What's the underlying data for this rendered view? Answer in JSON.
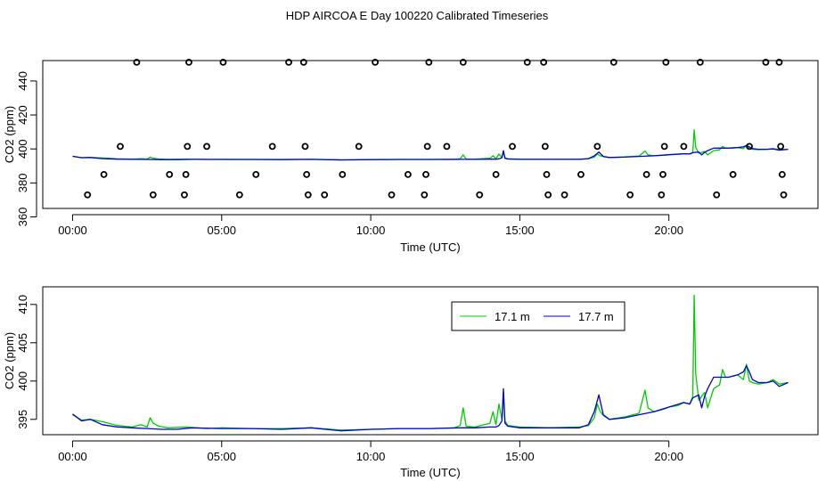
{
  "figure": {
    "title": "HDP AIRCOA E  Day 100220  Calibrated Timeseries"
  },
  "chart_data": [
    {
      "type": "scatter+line",
      "xlabel": "Time (UTC)",
      "ylabel": "CO2 (ppm)",
      "xlim": [
        -1.0,
        25.0
      ],
      "ylim": [
        365,
        452
      ],
      "x_ticks": [
        0,
        5,
        10,
        15,
        20
      ],
      "x_tick_labels": [
        "00:00",
        "05:00",
        "10:00",
        "15:00",
        "20:00"
      ],
      "y_ticks": [
        360,
        380,
        400,
        420,
        440
      ],
      "y_tick_labels": [
        "360",
        "380",
        "400",
        "420",
        "440"
      ],
      "grid": false,
      "calibration_points": [
        {
          "x": 0.5,
          "y": 373
        },
        {
          "x": 1.05,
          "y": 385
        },
        {
          "x": 1.6,
          "y": 401.5
        },
        {
          "x": 2.15,
          "y": 451
        },
        {
          "x": 2.7,
          "y": 373
        },
        {
          "x": 3.25,
          "y": 385
        },
        {
          "x": 3.75,
          "y": 373
        },
        {
          "x": 3.8,
          "y": 385
        },
        {
          "x": 3.85,
          "y": 401.5
        },
        {
          "x": 3.9,
          "y": 451
        },
        {
          "x": 4.5,
          "y": 401.5
        },
        {
          "x": 5.05,
          "y": 451
        },
        {
          "x": 5.6,
          "y": 373
        },
        {
          "x": 6.15,
          "y": 385
        },
        {
          "x": 6.7,
          "y": 401.5
        },
        {
          "x": 7.25,
          "y": 451
        },
        {
          "x": 7.75,
          "y": 451
        },
        {
          "x": 7.8,
          "y": 401.5
        },
        {
          "x": 7.85,
          "y": 385
        },
        {
          "x": 7.9,
          "y": 373
        },
        {
          "x": 8.45,
          "y": 373
        },
        {
          "x": 9.05,
          "y": 385
        },
        {
          "x": 9.6,
          "y": 401.5
        },
        {
          "x": 10.15,
          "y": 451
        },
        {
          "x": 10.7,
          "y": 373
        },
        {
          "x": 11.25,
          "y": 385
        },
        {
          "x": 11.8,
          "y": 373
        },
        {
          "x": 11.85,
          "y": 385
        },
        {
          "x": 11.9,
          "y": 401.5
        },
        {
          "x": 11.95,
          "y": 451
        },
        {
          "x": 12.55,
          "y": 401.5
        },
        {
          "x": 13.1,
          "y": 451
        },
        {
          "x": 13.65,
          "y": 373
        },
        {
          "x": 14.2,
          "y": 385
        },
        {
          "x": 14.75,
          "y": 401.5
        },
        {
          "x": 15.25,
          "y": 451
        },
        {
          "x": 15.8,
          "y": 451
        },
        {
          "x": 15.85,
          "y": 401.5
        },
        {
          "x": 15.9,
          "y": 385
        },
        {
          "x": 15.95,
          "y": 373
        },
        {
          "x": 16.5,
          "y": 373
        },
        {
          "x": 17.05,
          "y": 385
        },
        {
          "x": 17.6,
          "y": 401.5
        },
        {
          "x": 18.15,
          "y": 451
        },
        {
          "x": 18.7,
          "y": 373
        },
        {
          "x": 19.25,
          "y": 385
        },
        {
          "x": 19.75,
          "y": 373
        },
        {
          "x": 19.8,
          "y": 385
        },
        {
          "x": 19.85,
          "y": 401.5
        },
        {
          "x": 19.9,
          "y": 451
        },
        {
          "x": 20.5,
          "y": 401.5
        },
        {
          "x": 21.05,
          "y": 451
        },
        {
          "x": 21.6,
          "y": 373
        },
        {
          "x": 22.15,
          "y": 385
        },
        {
          "x": 22.7,
          "y": 401.5
        },
        {
          "x": 23.25,
          "y": 451
        },
        {
          "x": 23.7,
          "y": 451
        },
        {
          "x": 23.75,
          "y": 401.5
        },
        {
          "x": 23.8,
          "y": 385
        },
        {
          "x": 23.85,
          "y": 373
        }
      ],
      "series": [
        {
          "name": "17.1 m",
          "color": "#00cc00",
          "x": [
            0.0,
            0.3,
            0.6,
            1.0,
            1.5,
            2.0,
            2.3,
            2.5,
            2.6,
            2.7,
            2.9,
            3.2,
            3.8,
            4.5,
            5.0,
            6.0,
            7.0,
            8.0,
            9.0,
            10.0,
            11.0,
            12.0,
            12.8,
            13.0,
            13.1,
            13.2,
            13.5,
            14.0,
            14.1,
            14.2,
            14.3,
            14.4,
            14.45,
            14.5,
            14.6,
            15.0,
            16.0,
            17.0,
            17.3,
            17.5,
            17.6,
            17.7,
            17.8,
            18.0,
            18.5,
            19.0,
            19.2,
            19.3,
            19.5,
            19.8,
            20.0,
            20.3,
            20.5,
            20.7,
            20.8,
            20.85,
            20.9,
            21.0,
            21.2,
            21.3,
            21.5,
            21.7,
            21.8,
            21.9,
            22.0,
            22.3,
            22.5,
            22.6,
            22.7,
            22.8,
            23.0,
            23.3,
            23.5,
            23.7,
            24.0
          ],
          "y": [
            395.6,
            394.9,
            395.0,
            394.7,
            394.2,
            394.0,
            394.3,
            394.0,
            395.2,
            394.5,
            394.1,
            393.9,
            394.0,
            393.8,
            393.9,
            393.8,
            393.8,
            393.9,
            393.6,
            393.7,
            393.8,
            393.8,
            393.9,
            394.2,
            396.5,
            394.1,
            394.0,
            394.5,
            396.0,
            394.3,
            397.0,
            395.0,
            398.5,
            394.8,
            394.2,
            394.0,
            393.9,
            394.0,
            394.2,
            395.2,
            397.0,
            396.0,
            395.5,
            395.0,
            395.3,
            395.8,
            398.8,
            396.5,
            396.0,
            396.3,
            396.6,
            396.8,
            397.2,
            397.0,
            398.0,
            411.2,
            401.0,
            397.5,
            398.5,
            396.5,
            399.0,
            399.5,
            401.5,
            400.5,
            400.5,
            400.8,
            400.2,
            402.2,
            400.0,
            399.8,
            399.6,
            399.8,
            400.2,
            399.6,
            399.8
          ]
        },
        {
          "name": "17.7 m",
          "color": "#0000cc",
          "x": [
            0.0,
            0.3,
            0.6,
            1.0,
            1.5,
            2.0,
            2.5,
            3.0,
            3.5,
            4.0,
            5.0,
            6.0,
            7.0,
            8.0,
            9.0,
            10.0,
            11.0,
            12.0,
            13.0,
            13.5,
            14.0,
            14.2,
            14.3,
            14.4,
            14.45,
            14.5,
            14.6,
            15.0,
            16.0,
            17.0,
            17.3,
            17.5,
            17.65,
            17.8,
            18.0,
            18.5,
            19.0,
            19.5,
            20.0,
            20.5,
            20.7,
            20.8,
            21.0,
            21.1,
            21.2,
            21.3,
            21.5,
            21.8,
            22.0,
            22.3,
            22.5,
            22.6,
            22.7,
            22.8,
            23.0,
            23.3,
            23.5,
            23.7,
            24.0
          ],
          "y": [
            395.7,
            394.8,
            395.0,
            394.3,
            394.0,
            393.9,
            393.8,
            393.7,
            393.7,
            393.9,
            393.8,
            393.8,
            393.7,
            393.9,
            393.5,
            393.7,
            393.8,
            393.8,
            393.9,
            393.9,
            394.0,
            394.0,
            394.2,
            394.8,
            399.0,
            394.5,
            394.1,
            393.9,
            393.9,
            393.9,
            394.3,
            396.0,
            398.2,
            395.6,
            395.0,
            395.2,
            395.6,
            396.0,
            396.6,
            397.2,
            397.0,
            397.8,
            398.2,
            396.5,
            398.0,
            399.0,
            400.5,
            400.5,
            400.5,
            400.8,
            401.2,
            402.0,
            401.2,
            400.2,
            399.8,
            399.8,
            400.0,
            399.3,
            399.8
          ]
        }
      ]
    },
    {
      "type": "line",
      "xlabel": "Time (UTC)",
      "ylabel": "CO2 (ppm)",
      "xlim": [
        -1.0,
        25.0
      ],
      "ylim": [
        393.0,
        412.3
      ],
      "x_ticks": [
        0,
        5,
        10,
        15,
        20
      ],
      "x_tick_labels": [
        "00:00",
        "05:00",
        "10:00",
        "15:00",
        "20:00"
      ],
      "y_ticks": [
        395,
        400,
        405,
        410
      ],
      "y_tick_labels": [
        "395",
        "400",
        "405",
        "410"
      ],
      "grid": false,
      "legend": {
        "position": "top-right",
        "entries": [
          "17.1 m",
          "17.7 m"
        ]
      },
      "series_ref": "same series as panel 1 (17.1 m, 17.7 m)"
    }
  ]
}
